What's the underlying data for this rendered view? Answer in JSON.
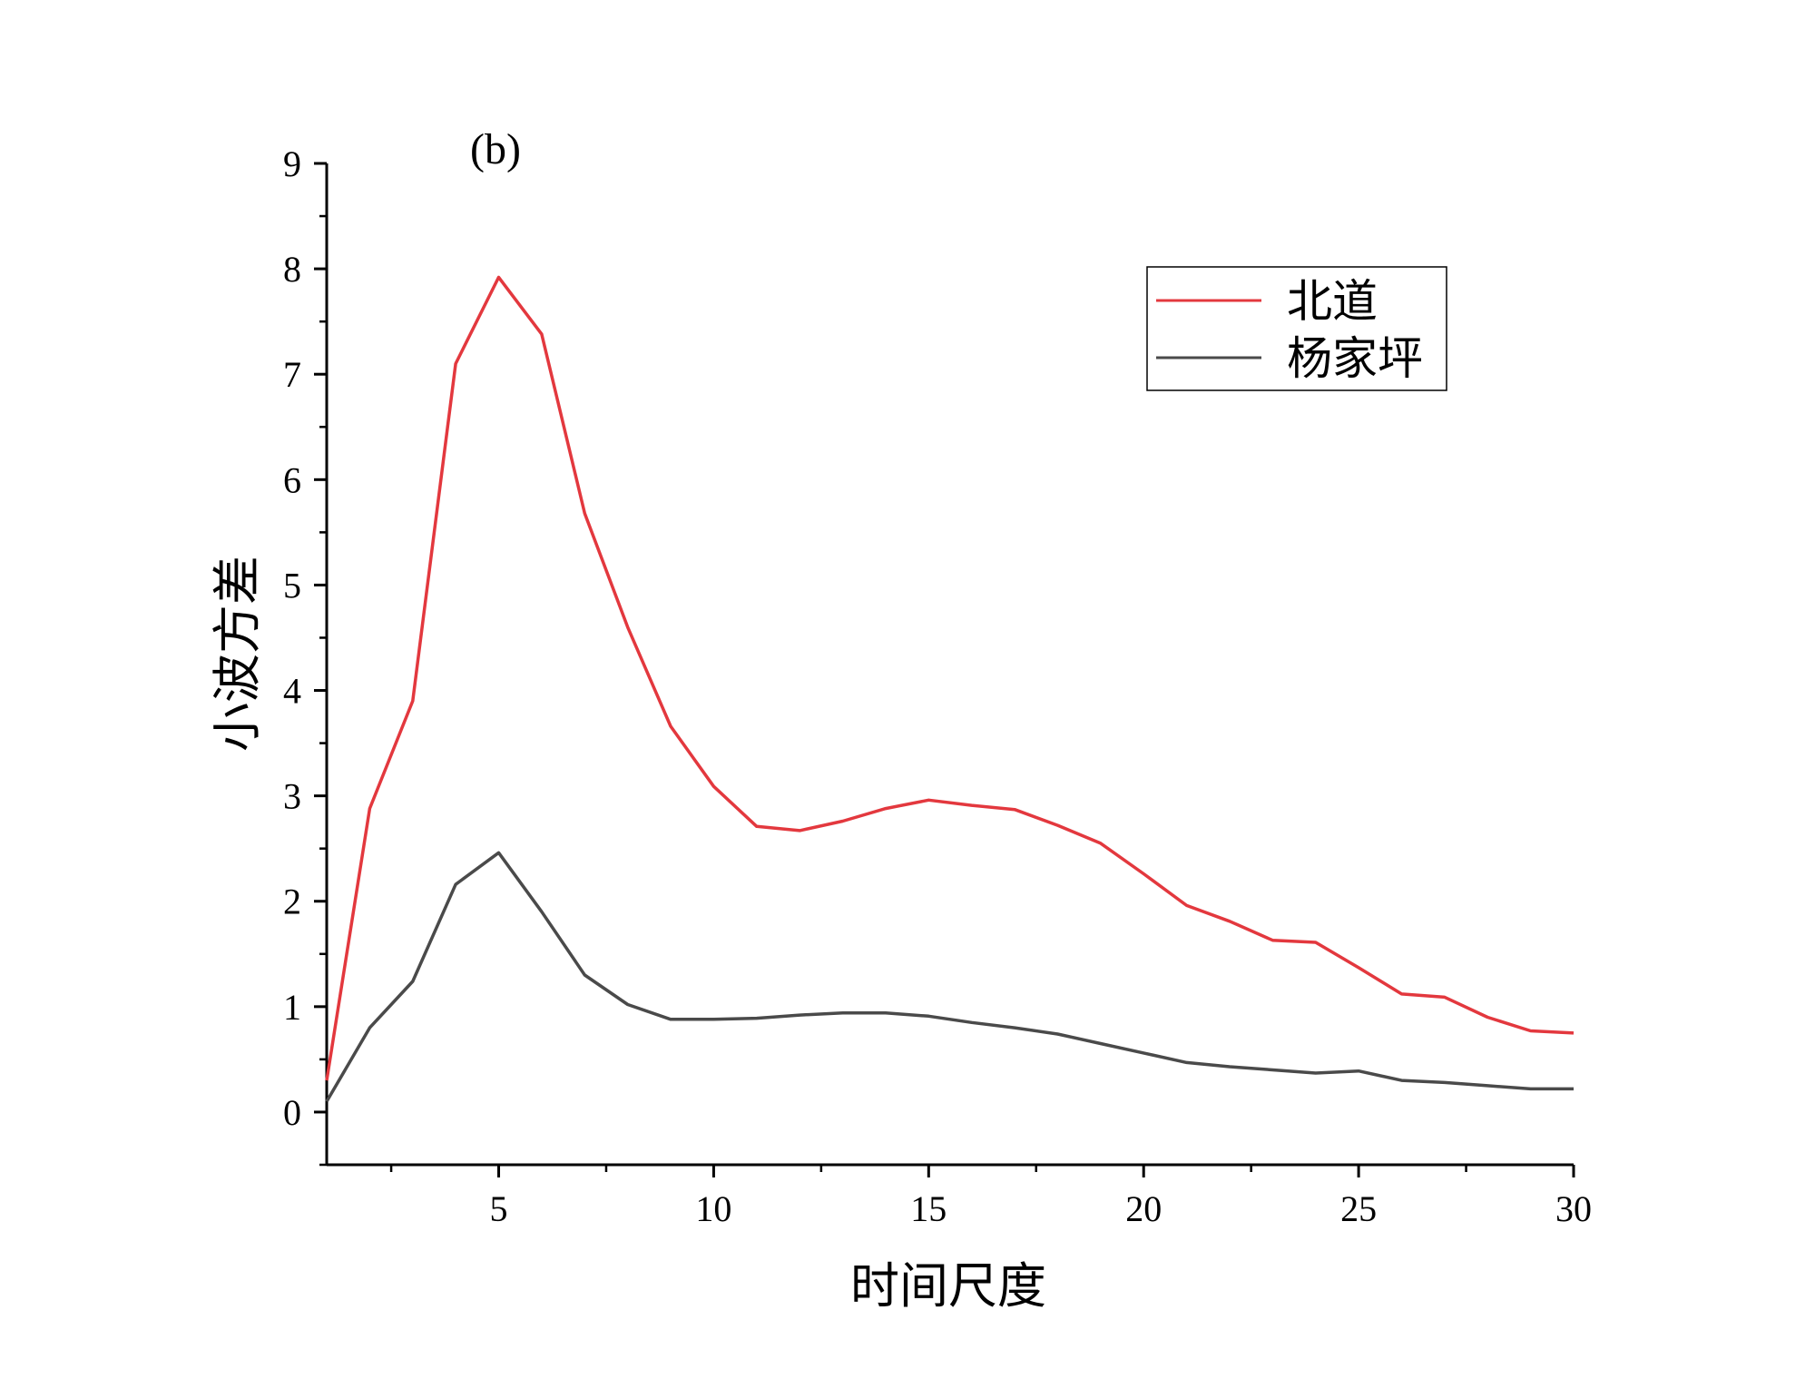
{
  "chart_data": {
    "type": "line",
    "panel_label": "(b)",
    "xlabel": "时间尺度",
    "ylabel": "小波方差",
    "xlim": [
      1,
      30
    ],
    "ylim": [
      -0.5,
      9
    ],
    "x_ticks": [
      5,
      10,
      15,
      20,
      25,
      30
    ],
    "y_ticks": [
      0,
      1,
      2,
      3,
      4,
      5,
      6,
      7,
      8,
      9
    ],
    "grid": false,
    "legend_position": "top-right",
    "x": [
      1,
      2,
      3,
      4,
      5,
      6,
      7,
      8,
      9,
      10,
      11,
      12,
      13,
      14,
      15,
      16,
      17,
      18,
      19,
      20,
      21,
      22,
      23,
      24,
      25,
      26,
      27,
      28,
      29,
      30
    ],
    "series": [
      {
        "name": "北道",
        "color": "#e3383e",
        "values": [
          0.3,
          2.88,
          3.9,
          7.1,
          7.92,
          7.38,
          5.68,
          4.6,
          3.66,
          3.09,
          2.71,
          2.67,
          2.76,
          2.88,
          2.96,
          2.91,
          2.87,
          2.72,
          2.55,
          2.26,
          1.96,
          1.81,
          1.63,
          1.61,
          1.37,
          1.12,
          1.09,
          0.9,
          0.77,
          0.75
        ]
      },
      {
        "name": "杨家坪",
        "color": "#4a4a4a",
        "values": [
          0.1,
          0.8,
          1.24,
          2.16,
          2.46,
          1.9,
          1.3,
          1.02,
          0.88,
          0.88,
          0.89,
          0.92,
          0.94,
          0.94,
          0.91,
          0.85,
          0.8,
          0.74,
          0.65,
          0.56,
          0.47,
          0.43,
          0.4,
          0.37,
          0.39,
          0.3,
          0.28,
          0.25,
          0.22,
          0.22
        ]
      }
    ]
  }
}
